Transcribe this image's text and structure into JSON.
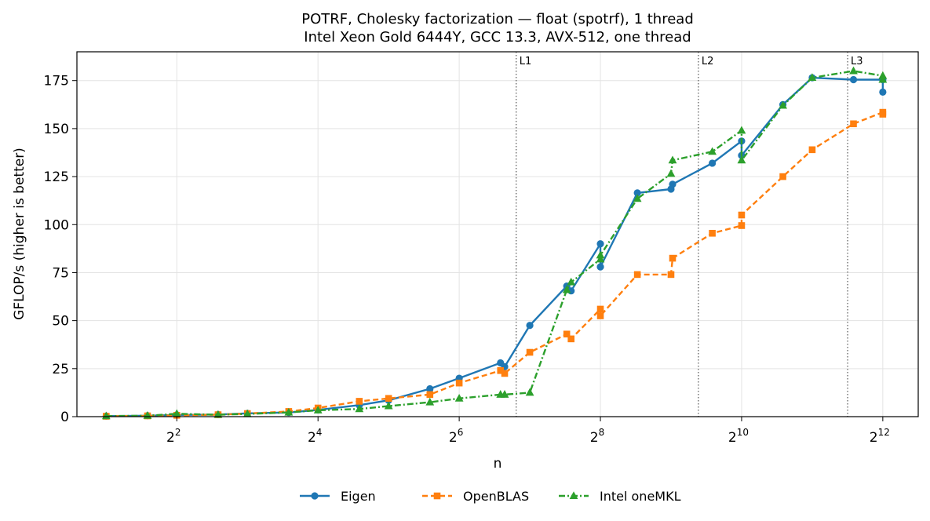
{
  "chart_data": {
    "type": "line",
    "title": "POTRF, Cholesky factorization — float (spotrf), 1 thread",
    "subtitle": "Intel Xeon Gold 6444Y, GCC 13.3, AVX-512, one thread",
    "xlabel": "n",
    "ylabel": "GFLOP/s (higher is better)",
    "x_scale": "log2",
    "xlim": [
      1.5,
      5800
    ],
    "ylim": [
      0,
      190
    ],
    "x_ticks": [
      {
        "value": 4,
        "base": "2",
        "exp": "2"
      },
      {
        "value": 16,
        "base": "2",
        "exp": "4"
      },
      {
        "value": 64,
        "base": "2",
        "exp": "6"
      },
      {
        "value": 256,
        "base": "2",
        "exp": "8"
      },
      {
        "value": 1024,
        "base": "2",
        "exp": "10"
      },
      {
        "value": 4096,
        "base": "2",
        "exp": "12"
      }
    ],
    "y_ticks": [
      0,
      25,
      50,
      75,
      100,
      125,
      150,
      175
    ],
    "grid": true,
    "cache_lines": [
      {
        "label": "L1",
        "x": 112
      },
      {
        "label": "L2",
        "x": 670
      },
      {
        "label": "L3",
        "x": 2900
      }
    ],
    "legend_position": "bottom-center",
    "series": [
      {
        "name": "Eigen",
        "color": "#1f77b4",
        "dash": "solid",
        "marker": "circle",
        "points": [
          [
            2,
            0.3
          ],
          [
            3,
            0.5
          ],
          [
            4,
            0.9
          ],
          [
            6,
            1.1
          ],
          [
            8,
            1.7
          ],
          [
            12,
            2.2
          ],
          [
            16,
            3.5
          ],
          [
            24,
            6
          ],
          [
            32,
            8.5
          ],
          [
            48,
            14.5
          ],
          [
            64,
            20
          ],
          [
            96,
            28
          ],
          [
            100,
            26
          ],
          [
            128,
            47.5
          ],
          [
            184,
            68
          ],
          [
            192,
            65.5
          ],
          [
            256,
            90
          ],
          [
            256,
            78
          ],
          [
            368,
            116.5
          ],
          [
            512,
            118.5
          ],
          [
            520,
            121
          ],
          [
            768,
            132
          ],
          [
            1024,
            143.5
          ],
          [
            1024,
            136
          ],
          [
            1536,
            162.5
          ],
          [
            2048,
            176.5
          ],
          [
            3072,
            175.5
          ],
          [
            4096,
            175.5
          ],
          [
            4096,
            169
          ]
        ]
      },
      {
        "name": "OpenBLAS",
        "color": "#ff7f0e",
        "dash": "dashed",
        "marker": "square",
        "points": [
          [
            2,
            0.2
          ],
          [
            3,
            0.4
          ],
          [
            4,
            0.7
          ],
          [
            6,
            1
          ],
          [
            8,
            1.6
          ],
          [
            12,
            2.7
          ],
          [
            16,
            4.5
          ],
          [
            24,
            8
          ],
          [
            32,
            9.5
          ],
          [
            48,
            11.5
          ],
          [
            64,
            17.5
          ],
          [
            96,
            24
          ],
          [
            100,
            22.5
          ],
          [
            128,
            33.5
          ],
          [
            184,
            43
          ],
          [
            192,
            40.5
          ],
          [
            256,
            56
          ],
          [
            256,
            52.5
          ],
          [
            368,
            74
          ],
          [
            512,
            74
          ],
          [
            520,
            82.5
          ],
          [
            768,
            95.5
          ],
          [
            1024,
            99.5
          ],
          [
            1024,
            105
          ],
          [
            1536,
            125
          ],
          [
            2048,
            139
          ],
          [
            3072,
            152.5
          ],
          [
            4096,
            158.5
          ],
          [
            4096,
            157.5
          ]
        ]
      },
      {
        "name": "Intel oneMKL",
        "color": "#2ca02c",
        "dash": "dashdot",
        "marker": "triangle",
        "points": [
          [
            2,
            0.3
          ],
          [
            3,
            0.5
          ],
          [
            4,
            1.5
          ],
          [
            6,
            1
          ],
          [
            8,
            1.4
          ],
          [
            12,
            2.2
          ],
          [
            16,
            3.3
          ],
          [
            24,
            4
          ],
          [
            32,
            5.5
          ],
          [
            48,
            7.5
          ],
          [
            64,
            9.5
          ],
          [
            96,
            11.5
          ],
          [
            100,
            11.5
          ],
          [
            128,
            12.5
          ],
          [
            184,
            66
          ],
          [
            192,
            70
          ],
          [
            256,
            82
          ],
          [
            256,
            84
          ],
          [
            368,
            113.5
          ],
          [
            512,
            126.5
          ],
          [
            520,
            133.5
          ],
          [
            768,
            138
          ],
          [
            1024,
            149
          ],
          [
            1024,
            133.5
          ],
          [
            1536,
            162
          ],
          [
            2048,
            176.5
          ],
          [
            3072,
            180
          ],
          [
            4096,
            177.5
          ],
          [
            4096,
            175.5
          ]
        ]
      }
    ]
  }
}
